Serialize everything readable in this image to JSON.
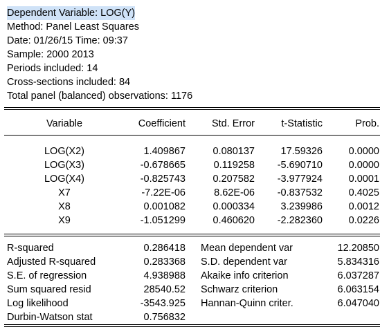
{
  "header": [
    "Dependent Variable: LOG(Y)",
    "Method: Panel Least Squares",
    "Date: 01/26/15   Time: 09:37",
    "Sample: 2000 2013",
    "Periods included: 14",
    "Cross-sections included: 84",
    "Total panel (balanced) observations: 1176"
  ],
  "header_highlight": "Dependent Variable: LOG(Y)",
  "columns": [
    "Variable",
    "Coefficient",
    "Std. Error",
    "t-Statistic",
    "Prob."
  ],
  "rows": [
    [
      "LOG(X2)",
      "1.409867",
      "0.080137",
      "17.59326",
      "0.0000"
    ],
    [
      "LOG(X3)",
      "-0.678665",
      "0.119258",
      "-5.690710",
      "0.0000"
    ],
    [
      "LOG(X4)",
      "-0.825743",
      "0.207582",
      "-3.977924",
      "0.0001"
    ],
    [
      "X7",
      "-7.22E-06",
      "8.62E-06",
      "-0.837532",
      "0.4025"
    ],
    [
      "X8",
      "0.001082",
      "0.000334",
      "3.239986",
      "0.0012"
    ],
    [
      "X9",
      "-1.051299",
      "0.460620",
      "-2.282360",
      "0.0226"
    ]
  ],
  "stats_left": [
    [
      "R-squared",
      "0.286418"
    ],
    [
      "Adjusted R-squared",
      "0.283368"
    ],
    [
      "S.E. of regression",
      "4.938988"
    ],
    [
      "Sum squared resid",
      "28540.52"
    ],
    [
      "Log likelihood",
      "-3543.925"
    ],
    [
      "Durbin-Watson stat",
      "0.756832"
    ]
  ],
  "stats_right": [
    [
      "Mean dependent var",
      "12.20850"
    ],
    [
      "S.D. dependent var",
      "5.834316"
    ],
    [
      "Akaike info criterion",
      "6.037287"
    ],
    [
      "Schwarz criterion",
      "6.063154"
    ],
    [
      "Hannan-Quinn criter.",
      "6.047040"
    ]
  ],
  "colors": {
    "selection": "#cfe2f7",
    "text": "#000000",
    "rule": "#000000"
  }
}
